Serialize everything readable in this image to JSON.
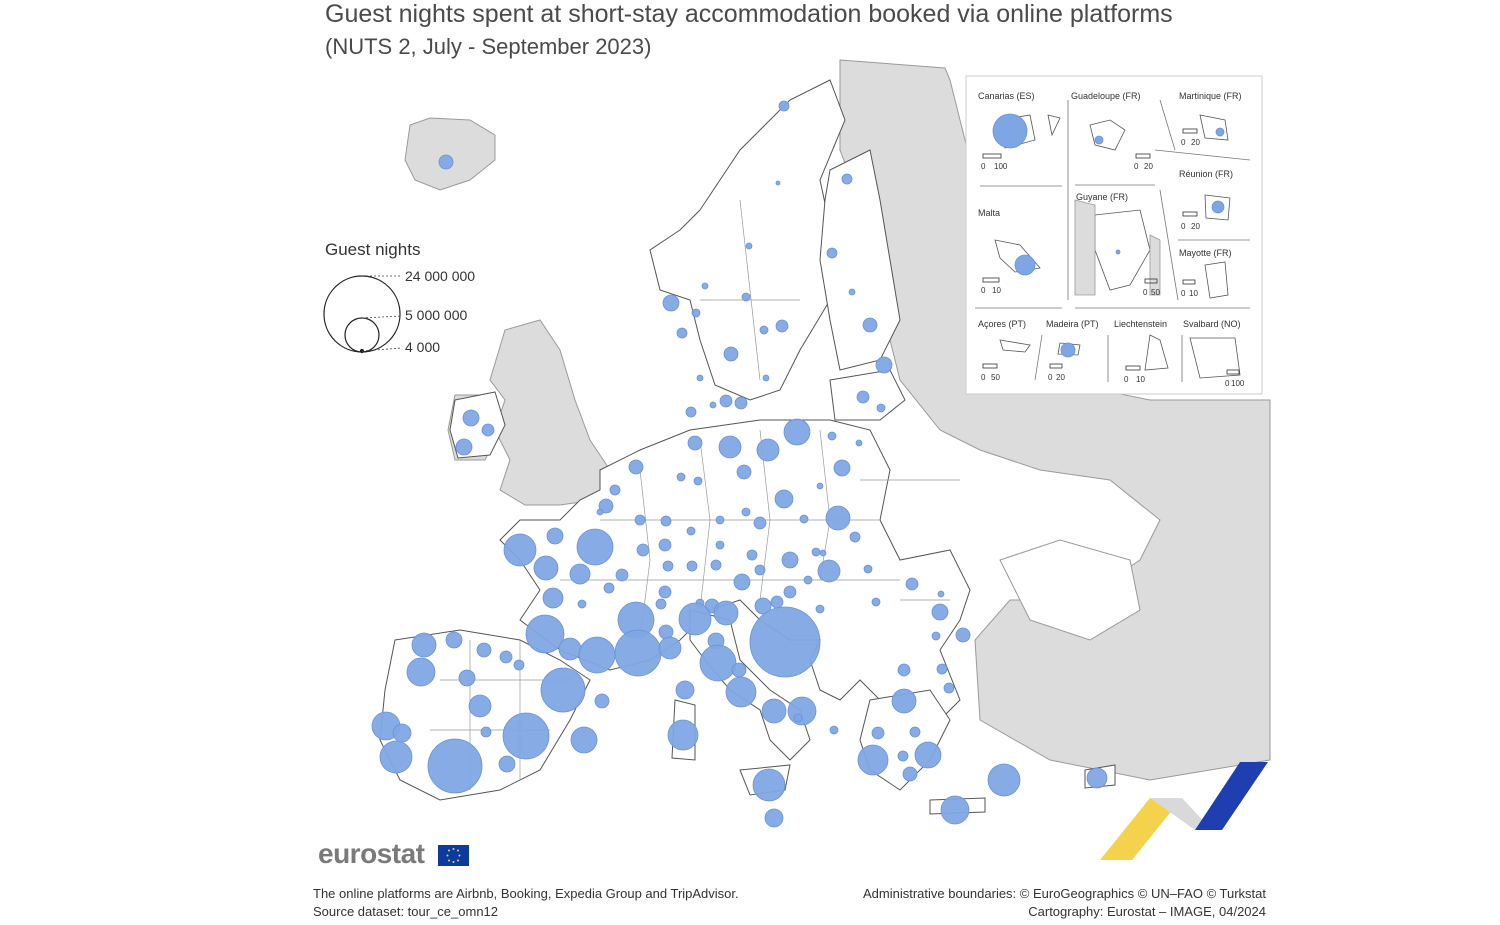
{
  "header": {
    "title": "Guest nights spent at short-stay accommodation booked via online platforms",
    "subtitle": "(NUTS 2, July - September 2023)"
  },
  "legend": {
    "title": "Guest nights",
    "values": [
      "24 000 000",
      "5 000 000",
      "4 000"
    ]
  },
  "insets": [
    {
      "name": "Canarias (ES)",
      "scale": [
        "0",
        "100"
      ]
    },
    {
      "name": "Guadeloupe (FR)",
      "scale": [
        "0",
        "20"
      ]
    },
    {
      "name": "Martinique (FR)",
      "scale": [
        "0",
        "20"
      ]
    },
    {
      "name": "Réunion (FR)",
      "scale": [
        "0",
        "20"
      ]
    },
    {
      "name": "Guyane (FR)",
      "scale": [
        "0",
        "50"
      ]
    },
    {
      "name": "Malta",
      "scale": [
        "0",
        "10"
      ]
    },
    {
      "name": "Mayotte (FR)",
      "scale": [
        "0",
        "10"
      ]
    },
    {
      "name": "Açores (PT)",
      "scale": [
        "0",
        "50"
      ]
    },
    {
      "name": "Madeira (PT)",
      "scale": [
        "0",
        "20"
      ]
    },
    {
      "name": "Liechtenstein",
      "scale": [
        "0",
        "10"
      ]
    },
    {
      "name": "Svalbard (NO)",
      "scale": [
        "0",
        "100"
      ]
    }
  ],
  "logo": {
    "text": "eurostat"
  },
  "footer": {
    "note": "The online platforms are Airbnb, Booking, Expedia Group and TripAdvisor.",
    "source": "Source dataset: tour_ce_omn12",
    "boundaries": "Administrative boundaries: © EuroGeographics © UN–FAO © Turkstat",
    "cartography": "Cartography: Eurostat – IMAGE, 04/2024"
  },
  "colors": {
    "bubble": "#7fa6e4",
    "bubble_stroke": "#6a93d6",
    "land_nonEU": "#dcdcdc",
    "land_EU": "#ffffff",
    "border": "#555555"
  }
}
